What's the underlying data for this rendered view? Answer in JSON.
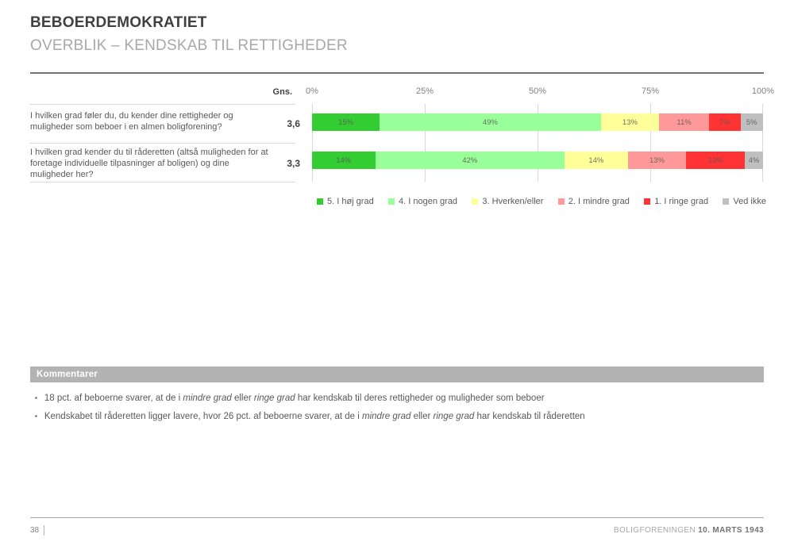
{
  "header": {
    "title": "BEBOERDEMOKRATIET",
    "subtitle": "OVERBLIK – KENDSKAB TIL RETTIGHEDER"
  },
  "chart_data": {
    "type": "bar",
    "orientation": "horizontal",
    "stacked": true,
    "gns_label": "Gns.",
    "x_ticks": [
      "0%",
      "25%",
      "50%",
      "75%",
      "100%"
    ],
    "xlim": [
      0,
      100
    ],
    "grid": true,
    "legend_position": "bottom",
    "value_labels": "inside",
    "categories": [
      "I hvilken grad føler du, du kender dine rettigheder og muligheder som beboer i en almen boligforening?",
      "I hvilken grad kender du til råderetten (altså muligheden for at foretage individuelle tilpasninger af boligen) og dine muligheder her?"
    ],
    "averages": [
      "3,6",
      "3,3"
    ],
    "series": [
      {
        "name": "5. I høj grad",
        "color": "#33CC33",
        "values": [
          15,
          14
        ]
      },
      {
        "name": "4. I nogen grad",
        "color": "#99FF99",
        "values": [
          49,
          42
        ]
      },
      {
        "name": "3. Hverken/eller",
        "color": "#FFFF99",
        "values": [
          13,
          14
        ]
      },
      {
        "name": "2. I mindre grad",
        "color": "#FF9999",
        "values": [
          11,
          13
        ]
      },
      {
        "name": "1. I ringe grad",
        "color": "#FF3333",
        "values": [
          7,
          13
        ]
      },
      {
        "name": "Ved ikke",
        "color": "#BFBFBF",
        "values": [
          5,
          4
        ]
      }
    ]
  },
  "comments": {
    "header": "Kommentarer",
    "bullet_marker": "▪",
    "bullets": [
      {
        "runs": [
          {
            "text": "18 pct. af beboerne svarer, at de i "
          },
          {
            "text": "mindre grad",
            "italic": true
          },
          {
            "text": " eller "
          },
          {
            "text": "ringe grad",
            "italic": true
          },
          {
            "text": " har kendskab til deres rettigheder og muligheder som beboer"
          }
        ]
      },
      {
        "runs": [
          {
            "text": "Kendskabet til råderetten ligger lavere, hvor 26 pct. af beboerne svarer, at de i "
          },
          {
            "text": "mindre grad",
            "italic": true
          },
          {
            "text": " eller "
          },
          {
            "text": "ringe grad",
            "italic": true
          },
          {
            "text": " har kendskab til råderetten"
          }
        ]
      }
    ]
  },
  "footer": {
    "page_number": "38",
    "org": "BOLIGFORENINGEN",
    "date": "10. MARTS 1943"
  }
}
